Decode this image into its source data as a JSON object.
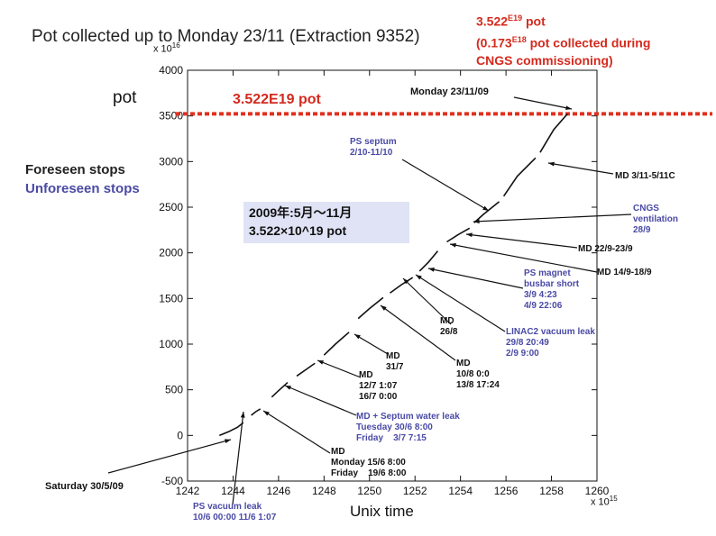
{
  "chart_data": {
    "type": "line",
    "title": "Pot collected up to Monday 23/11 (Extraction 9352)",
    "xlabel": "Unix time",
    "ylabel": "pot",
    "x_exponent": "x 10",
    "x_exponent_power": "15",
    "y_exponent": "x 10",
    "y_exponent_power": "16",
    "xlim": [
      1242,
      1260
    ],
    "ylim": [
      -500,
      4000
    ],
    "x_ticks": [
      "1242",
      "1244",
      "1246",
      "1248",
      "1250",
      "1252",
      "1254",
      "1256",
      "1258",
      "1260"
    ],
    "x_tick_values": [
      1242,
      1244,
      1246,
      1248,
      1250,
      1252,
      1254,
      1256,
      1258,
      1260
    ],
    "y_ticks": [
      "-500",
      "0",
      "500",
      "1000",
      "1500",
      "2000",
      "2500",
      "3000",
      "3500",
      "4000"
    ],
    "y_tick_values": [
      -500,
      0,
      500,
      1000,
      1500,
      2000,
      2500,
      3000,
      3500,
      4000
    ],
    "reference_line": {
      "y": 3522,
      "color": "#e0301e"
    },
    "series": [
      {
        "segments": [
          {
            "x": [
              1243.4,
              1243.8,
              1244.2,
              1244.45
            ],
            "y": [
              0,
              40,
              90,
              140
            ]
          },
          {
            "x": [
              1244.8,
              1245.0,
              1245.2
            ],
            "y": [
              220,
              260,
              290
            ]
          },
          {
            "x": [
              1245.7,
              1246.0,
              1246.4
            ],
            "y": [
              420,
              490,
              580
            ]
          },
          {
            "x": [
              1246.8,
              1247.2,
              1247.6
            ],
            "y": [
              650,
              720,
              790
            ]
          },
          {
            "x": [
              1248.0,
              1248.5,
              1249.1
            ],
            "y": [
              880,
              1000,
              1130
            ]
          },
          {
            "x": [
              1249.5,
              1250.0,
              1250.6
            ],
            "y": [
              1280,
              1390,
              1510
            ]
          },
          {
            "x": [
              1250.9,
              1251.4,
              1251.9
            ],
            "y": [
              1560,
              1650,
              1730
            ]
          },
          {
            "x": [
              1252.2,
              1252.6,
              1253.0
            ],
            "y": [
              1800,
              1900,
              2020
            ]
          },
          {
            "x": [
              1253.4,
              1253.9,
              1254.4
            ],
            "y": [
              2120,
              2200,
              2270
            ]
          },
          {
            "x": [
              1254.6,
              1255.0,
              1255.7
            ],
            "y": [
              2330,
              2420,
              2560
            ]
          },
          {
            "x": [
              1255.9,
              1256.5,
              1257.3
            ],
            "y": [
              2620,
              2840,
              3040
            ]
          },
          {
            "x": [
              1257.5,
              1258.1,
              1258.7
            ],
            "y": [
              3100,
              3350,
              3522
            ]
          }
        ]
      }
    ]
  },
  "header_note": {
    "line1_mantissa": "3.522",
    "line1_exp_base": "E",
    "line1_exp": "19",
    "line1_unit": " pot",
    "line2_open": "(0.173",
    "line2_exp_base": "E",
    "line2_exp": "18",
    "line2_rest": " pot collected during",
    "line3": "CNGS commissioning)"
  },
  "total_label": "3.522E19 pot",
  "legend_foreseen": "Foreseen stops",
  "legend_unforeseen": "Unforeseen stops",
  "summary_box": {
    "line1": "2009年:5月～11月",
    "line2": "3.522×10^19 pot"
  },
  "annotations": {
    "monday": "Monday 23/11/09",
    "saturday": "Saturday 30/5/09",
    "ps_septum": [
      "PS septum",
      "2/10-11/10"
    ],
    "md_311": "MD 3/11-5/11C",
    "cngs_vent": [
      "CNGS",
      "ventilation",
      "28/9"
    ],
    "md_229": "MD 22/9-23/9",
    "md_149": "MD 14/9-18/9",
    "ps_magnet": [
      "PS magnet",
      "busbar short",
      "3/9 4:23",
      "4/9 22:06"
    ],
    "linac2": [
      "LINAC2 vacuum leak",
      "29/8 20:49",
      "2/9 9:00"
    ],
    "md_268": [
      "MD",
      "26/8"
    ],
    "md_108": [
      "MD",
      "10/8 0:0",
      "13/8 17:24"
    ],
    "md_317": [
      "MD",
      "31/7"
    ],
    "md_127": [
      "MD",
      "12/7 1:07",
      "16/7 0:00"
    ],
    "md_septum": [
      "MD + Septum water leak",
      "Tuesday 30/6 8:00",
      "Friday    3/7 7:15"
    ],
    "md_156": [
      "MD",
      "Monday 15/6 8:00",
      "Friday    19/6 8:00"
    ],
    "ps_vacuum": [
      "PS vacuum leak",
      "10/6 00:00 11/6 1:07"
    ]
  }
}
